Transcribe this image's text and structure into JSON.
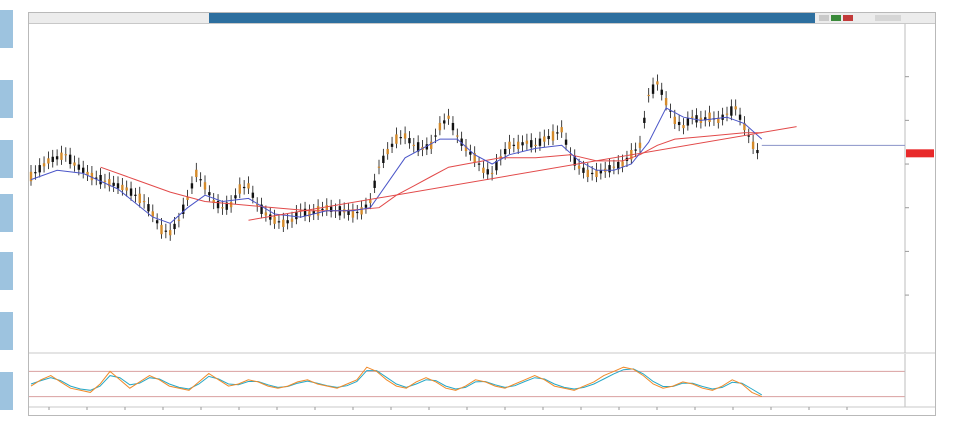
{
  "window": {
    "title": "",
    "colors": {
      "accent": "#2d6f9f",
      "candle": "#111111",
      "ma_fast": "#4a55c8",
      "ma_slow": "#e24a4a",
      "trendline": "#e24a4a",
      "price_marker": "#e8292a",
      "stoch_k": "#f08a2a",
      "stoch_d": "#27a8c7"
    }
  },
  "left_rail": {
    "buttons": 7
  },
  "indicator": {
    "label": "",
    "levels": [
      80,
      20
    ]
  },
  "chart_data": {
    "type": "line",
    "title": "",
    "xlabel": "",
    "ylabel": "",
    "grid": false,
    "legend": "none",
    "xlim": [
      0,
      100
    ],
    "ylim": [
      0,
      100
    ],
    "series": [
      {
        "values": [
          [
            0,
            54
          ],
          [
            2,
            59
          ],
          [
            4,
            61
          ],
          [
            5,
            58
          ],
          [
            7,
            54
          ],
          [
            9,
            52
          ],
          [
            11,
            50
          ],
          [
            13,
            46
          ],
          [
            14,
            42
          ],
          [
            15,
            37
          ],
          [
            16,
            36
          ],
          [
            17,
            40
          ],
          [
            18,
            47
          ],
          [
            19,
            55
          ],
          [
            20,
            51
          ],
          [
            21,
            46
          ],
          [
            22,
            44
          ],
          [
            23,
            45
          ],
          [
            24,
            50
          ],
          [
            25,
            51
          ],
          [
            26,
            45
          ],
          [
            27,
            42
          ],
          [
            28,
            40
          ],
          [
            29,
            39
          ],
          [
            30,
            40
          ],
          [
            31,
            43
          ],
          [
            32,
            42
          ],
          [
            33,
            43
          ],
          [
            34,
            44
          ],
          [
            35,
            43
          ],
          [
            36,
            43
          ],
          [
            37,
            42
          ],
          [
            38,
            43
          ],
          [
            39,
            46
          ],
          [
            40,
            57
          ],
          [
            41,
            62
          ],
          [
            42,
            66
          ],
          [
            43,
            67
          ],
          [
            44,
            64
          ],
          [
            45,
            63
          ],
          [
            46,
            64
          ],
          [
            47,
            70
          ],
          [
            48,
            73
          ],
          [
            49,
            67
          ],
          [
            50,
            63
          ],
          [
            51,
            60
          ],
          [
            52,
            56
          ],
          [
            53,
            55
          ],
          [
            54,
            60
          ],
          [
            55,
            64
          ],
          [
            56,
            64
          ],
          [
            57,
            65
          ],
          [
            58,
            64
          ],
          [
            59,
            66
          ],
          [
            60,
            67
          ],
          [
            61,
            69
          ],
          [
            62,
            61
          ],
          [
            63,
            57
          ],
          [
            64,
            55
          ],
          [
            65,
            55
          ],
          [
            66,
            56
          ],
          [
            67,
            57
          ],
          [
            68,
            58
          ],
          [
            69,
            61
          ],
          [
            70,
            64
          ],
          [
            71,
            80
          ],
          [
            72,
            84
          ],
          [
            73,
            78
          ],
          [
            74,
            72
          ],
          [
            75,
            70
          ],
          [
            76,
            73
          ],
          [
            77,
            72
          ],
          [
            78,
            73
          ],
          [
            79,
            72
          ],
          [
            80,
            74
          ],
          [
            81,
            76
          ],
          [
            82,
            70
          ],
          [
            83,
            64
          ],
          [
            84,
            60
          ]
        ]
      },
      {
        "values": [
          [
            0,
            53
          ],
          [
            3,
            56
          ],
          [
            6,
            55
          ],
          [
            10,
            50
          ],
          [
            14,
            41
          ],
          [
            16,
            39
          ],
          [
            18,
            44
          ],
          [
            20,
            48
          ],
          [
            22,
            46
          ],
          [
            25,
            47
          ],
          [
            28,
            42
          ],
          [
            31,
            41
          ],
          [
            34,
            43
          ],
          [
            37,
            43
          ],
          [
            39,
            44
          ],
          [
            41,
            52
          ],
          [
            43,
            60
          ],
          [
            45,
            63
          ],
          [
            47,
            66
          ],
          [
            49,
            66
          ],
          [
            51,
            61
          ],
          [
            53,
            58
          ],
          [
            55,
            61
          ],
          [
            58,
            63
          ],
          [
            61,
            64
          ],
          [
            63,
            59
          ],
          [
            65,
            56
          ],
          [
            67,
            56
          ],
          [
            69,
            58
          ],
          [
            71,
            65
          ],
          [
            73,
            76
          ],
          [
            75,
            73
          ],
          [
            77,
            72
          ],
          [
            80,
            73
          ],
          [
            82,
            71
          ],
          [
            84,
            66
          ]
        ]
      },
      {
        "values": [
          [
            8,
            57
          ],
          [
            12,
            53
          ],
          [
            16,
            49
          ],
          [
            20,
            46
          ],
          [
            24,
            45
          ],
          [
            28,
            44
          ],
          [
            32,
            43
          ],
          [
            36,
            43
          ],
          [
            40,
            44
          ],
          [
            42,
            48
          ],
          [
            44,
            51
          ],
          [
            46,
            54
          ],
          [
            48,
            57
          ],
          [
            50,
            58
          ],
          [
            54,
            60
          ],
          [
            58,
            60
          ],
          [
            62,
            61
          ],
          [
            65,
            59
          ],
          [
            68,
            59
          ],
          [
            70,
            61
          ],
          [
            72,
            64
          ],
          [
            74,
            66
          ],
          [
            78,
            67
          ],
          [
            82,
            68
          ],
          [
            84,
            68
          ]
        ]
      },
      {
        "values": [
          [
            25,
            40
          ],
          [
            88,
            70
          ]
        ]
      }
    ],
    "last_price_level": 64,
    "oscillator": {
      "ylim": [
        0,
        100
      ],
      "k": [
        45,
        60,
        70,
        55,
        40,
        35,
        30,
        50,
        80,
        60,
        40,
        55,
        70,
        60,
        45,
        40,
        35,
        55,
        75,
        60,
        45,
        50,
        60,
        55,
        45,
        40,
        45,
        55,
        60,
        50,
        45,
        40,
        50,
        60,
        90,
        80,
        60,
        45,
        40,
        55,
        65,
        55,
        40,
        35,
        45,
        60,
        55,
        45,
        40,
        50,
        60,
        70,
        60,
        45,
        40,
        35,
        45,
        55,
        70,
        80,
        90,
        85,
        70,
        50,
        40,
        45,
        55,
        50,
        40,
        35,
        45,
        60,
        50,
        30,
        20
      ],
      "d": [
        50,
        58,
        65,
        58,
        45,
        38,
        35,
        45,
        70,
        65,
        48,
        52,
        65,
        62,
        50,
        42,
        38,
        50,
        68,
        62,
        50,
        48,
        56,
        56,
        48,
        42,
        44,
        52,
        57,
        52,
        46,
        42,
        46,
        56,
        82,
        82,
        66,
        50,
        42,
        50,
        60,
        58,
        45,
        38,
        42,
        55,
        56,
        48,
        42,
        46,
        56,
        65,
        62,
        50,
        42,
        38,
        42,
        50,
        62,
        74,
        84,
        86,
        74,
        56,
        44,
        44,
        52,
        52,
        44,
        38,
        42,
        54,
        52,
        38,
        24
      ]
    }
  }
}
